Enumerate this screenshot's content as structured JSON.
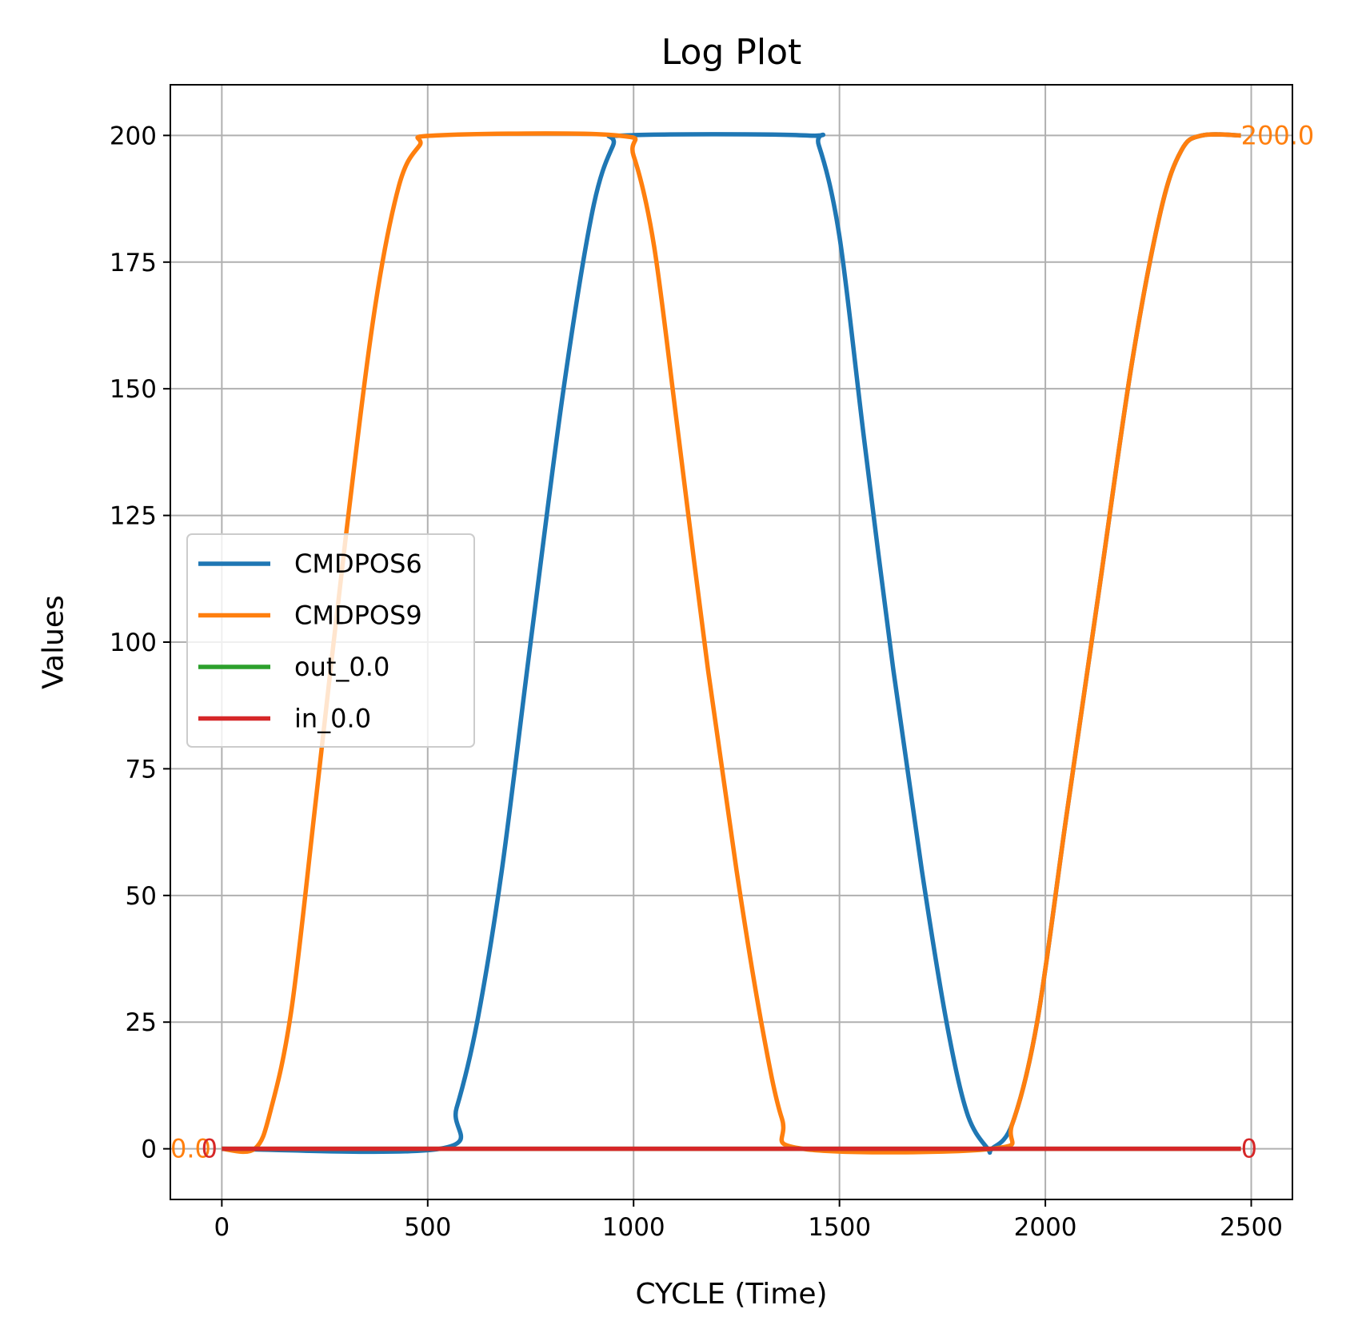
{
  "chart_data": {
    "type": "line",
    "title": "Log Plot",
    "xlabel": "CYCLE (Time)",
    "ylabel": "Values",
    "xlim": [
      -125,
      2600
    ],
    "ylim": [
      -10,
      210
    ],
    "xticks": [
      0,
      500,
      1000,
      1500,
      2000,
      2500
    ],
    "yticks": [
      0,
      25,
      50,
      75,
      100,
      125,
      150,
      175,
      200
    ],
    "grid": true,
    "legend_position": "center-left",
    "series": [
      {
        "name": "CMDPOS6",
        "color": "#1f77b4",
        "x": [
          0,
          530,
          570,
          620,
          680,
          750,
          830,
          900,
          950,
          980,
          1420,
          1450,
          1500,
          1560,
          1630,
          1700,
          1760,
          1810,
          1860,
          1870,
          1920,
          1980,
          2050,
          2130,
          2210,
          2280,
          2330,
          2380,
          2475
        ],
        "y": [
          0,
          0,
          8,
          25,
          55,
          100,
          150,
          185,
          198,
          200,
          200,
          198,
          180,
          140,
          95,
          55,
          25,
          7,
          0,
          0,
          5,
          25,
          65,
          110,
          155,
          185,
          197,
          200,
          200
        ]
      },
      {
        "name": "CMDPOS9",
        "color": "#ff7f0e",
        "x": [
          0,
          80,
          120,
          170,
          230,
          300,
          370,
          430,
          480,
          520,
          960,
          1000,
          1050,
          1110,
          1180,
          1250,
          1310,
          1360,
          1410,
          1870,
          1920,
          1980,
          2050,
          2130,
          2210,
          2280,
          2330,
          2380,
          2475
        ],
        "y": [
          0,
          0,
          8,
          28,
          70,
          120,
          165,
          190,
          198,
          200,
          200,
          196,
          178,
          140,
          95,
          55,
          25,
          6,
          0,
          0,
          5,
          25,
          65,
          110,
          155,
          185,
          197,
          200,
          200
        ]
      },
      {
        "name": "out_0.0",
        "color": "#2ca02c",
        "x": [
          0,
          2475
        ],
        "y": [
          0,
          0
        ]
      },
      {
        "name": "in_0.0",
        "color": "#d62728",
        "x": [
          0,
          2475
        ],
        "y": [
          0,
          0
        ]
      }
    ],
    "annotations": [
      {
        "text": "0.0",
        "x": -125,
        "y": 0,
        "color": "#ff7f0e"
      },
      {
        "text": "0",
        "x": -50,
        "y": 0,
        "color": "#d62728"
      },
      {
        "text": "200.0",
        "x": 2475,
        "y": 200,
        "color": "#ff7f0e"
      },
      {
        "text": "0",
        "x": 2475,
        "y": 0,
        "color": "#d62728"
      }
    ]
  }
}
